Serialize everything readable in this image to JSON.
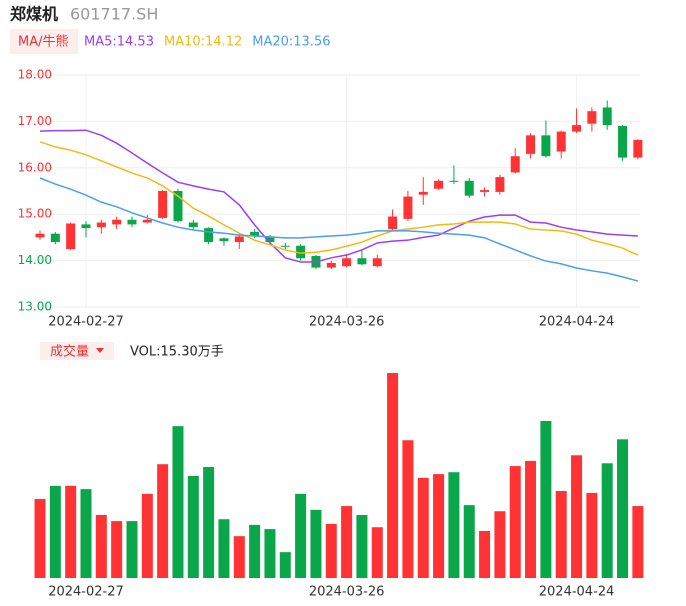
{
  "chart_data": [
    {
      "type": "candlestick",
      "title": "郑煤机",
      "subtitle": "601717.SH",
      "indicator_button": "MA/牛熊",
      "up_color": "#ff3333",
      "down_color": "#0aa64a",
      "categories": [
        null,
        null,
        null,
        "2024-02-27",
        null,
        null,
        null,
        null,
        null,
        null,
        null,
        null,
        null,
        null,
        null,
        null,
        null,
        null,
        null,
        null,
        "2024-03-26",
        null,
        null,
        null,
        null,
        null,
        null,
        null,
        null,
        null,
        null,
        null,
        null,
        null,
        null,
        "2024-04-24",
        null,
        null,
        null,
        null
      ],
      "open": [
        14.5,
        14.58,
        14.25,
        14.78,
        14.72,
        14.78,
        14.88,
        14.82,
        14.92,
        15.5,
        14.82,
        14.7,
        14.48,
        14.4,
        14.62,
        14.52,
        14.32,
        14.32,
        14.1,
        13.85,
        13.88,
        14.05,
        13.88,
        14.68,
        14.9,
        15.42,
        15.55,
        15.72,
        15.72,
        15.48,
        15.48,
        15.9,
        16.3,
        16.7,
        16.35,
        16.78,
        16.95,
        17.3,
        16.9,
        16.22
      ],
      "high": [
        14.65,
        14.62,
        14.82,
        14.85,
        14.88,
        14.95,
        14.95,
        14.98,
        15.52,
        15.55,
        14.88,
        14.72,
        14.5,
        14.58,
        14.68,
        14.55,
        14.38,
        14.35,
        14.12,
        14.0,
        14.15,
        14.25,
        14.12,
        15.1,
        15.5,
        15.8,
        15.75,
        16.05,
        15.78,
        15.58,
        15.85,
        16.42,
        16.75,
        17.02,
        16.8,
        17.28,
        17.3,
        17.45,
        16.92,
        16.62
      ],
      "low": [
        14.45,
        14.35,
        14.22,
        14.5,
        14.58,
        14.68,
        14.72,
        14.8,
        14.9,
        14.82,
        14.65,
        14.35,
        14.32,
        14.25,
        14.48,
        14.35,
        14.25,
        14.0,
        13.82,
        13.82,
        13.85,
        13.9,
        13.85,
        14.65,
        14.85,
        15.2,
        15.52,
        15.65,
        15.35,
        15.38,
        15.42,
        15.88,
        16.2,
        16.22,
        16.2,
        16.75,
        16.78,
        16.82,
        16.15,
        16.18
      ],
      "close": [
        14.58,
        14.4,
        14.8,
        14.7,
        14.82,
        14.88,
        14.78,
        14.88,
        15.5,
        14.85,
        14.72,
        14.4,
        14.42,
        14.52,
        14.52,
        14.4,
        14.3,
        14.05,
        13.85,
        13.95,
        14.05,
        13.92,
        14.05,
        14.95,
        15.38,
        15.48,
        15.72,
        15.7,
        15.4,
        15.52,
        15.8,
        16.25,
        16.7,
        16.25,
        16.78,
        16.92,
        17.22,
        16.92,
        16.22,
        16.6
      ],
      "series": [
        {
          "name": "MA5:14.53",
          "color": "#9b3ff5",
          "values": [
            16.79,
            16.8,
            16.8,
            16.81,
            16.7,
            16.53,
            16.32,
            16.1,
            15.89,
            15.69,
            15.61,
            15.54,
            15.48,
            15.2,
            14.77,
            14.38,
            14.06,
            13.97,
            13.97,
            14.06,
            14.12,
            14.23,
            14.38,
            14.42,
            14.44,
            14.5,
            14.55,
            14.7,
            14.85,
            14.94,
            14.98,
            14.98,
            14.83,
            14.81,
            14.72,
            14.66,
            14.62,
            14.57,
            14.55,
            14.53
          ]
        },
        {
          "name": "MA10:14.12",
          "color": "#f5b90f",
          "values": [
            16.56,
            16.45,
            16.38,
            16.28,
            16.15,
            16.02,
            15.89,
            15.78,
            15.61,
            15.39,
            15.13,
            14.96,
            14.77,
            14.59,
            14.44,
            14.34,
            14.23,
            14.16,
            14.18,
            14.23,
            14.31,
            14.4,
            14.53,
            14.64,
            14.68,
            14.72,
            14.77,
            14.79,
            14.83,
            14.83,
            14.83,
            14.79,
            14.68,
            14.66,
            14.64,
            14.57,
            14.44,
            14.36,
            14.27,
            14.12
          ]
        },
        {
          "name": "MA20:13.56",
          "color": "#4a9ff0",
          "values": [
            15.78,
            15.65,
            15.54,
            15.41,
            15.26,
            15.16,
            15.03,
            14.92,
            14.81,
            14.72,
            14.66,
            14.62,
            14.59,
            14.55,
            14.53,
            14.51,
            14.49,
            14.49,
            14.51,
            14.53,
            14.55,
            14.59,
            14.64,
            14.64,
            14.64,
            14.62,
            14.59,
            14.57,
            14.55,
            14.49,
            14.36,
            14.23,
            14.1,
            13.99,
            13.93,
            13.84,
            13.78,
            13.73,
            13.65,
            13.56
          ]
        }
      ],
      "ylim": [
        13,
        18
      ],
      "yticks": [
        {
          "value": 13,
          "label": "13.00"
        },
        {
          "value": 14,
          "label": "14.00"
        },
        {
          "value": 15,
          "label": "15.00"
        },
        {
          "value": 16,
          "label": "16.00"
        },
        {
          "value": 17,
          "label": "17.00"
        },
        {
          "value": 18,
          "label": "18.00"
        }
      ],
      "ytick_colors": [
        "#0aa64a",
        "#0aa64a",
        "#ff3333",
        "#ff3333",
        "#ff3333",
        "#ff3333"
      ],
      "grid": true
    },
    {
      "type": "bar",
      "title": "成交量",
      "subtitle": "VOL:15.30万手",
      "values": [
        16.8,
        19.6,
        19.6,
        18.9,
        13.4,
        12.1,
        12.1,
        17.9,
        24.2,
        32.3,
        21.7,
        23.6,
        12.5,
        8.9,
        11.3,
        10.4,
        5.5,
        17.9,
        14.5,
        11.5,
        15.3,
        13.4,
        10.8,
        43.6,
        29.3,
        21.3,
        22.1,
        22.5,
        15.5,
        10.0,
        14.2,
        23.8,
        24.9,
        33.4,
        18.5,
        26.1,
        18.1,
        24.4,
        29.5,
        15.3
      ],
      "categories": [
        null,
        null,
        null,
        "2024-02-27",
        null,
        null,
        null,
        null,
        null,
        null,
        null,
        null,
        null,
        null,
        null,
        null,
        null,
        null,
        null,
        null,
        "2024-03-26",
        null,
        null,
        null,
        null,
        null,
        null,
        null,
        null,
        null,
        null,
        null,
        null,
        null,
        null,
        "2024-04-24",
        null,
        null,
        null,
        null
      ]
    }
  ]
}
